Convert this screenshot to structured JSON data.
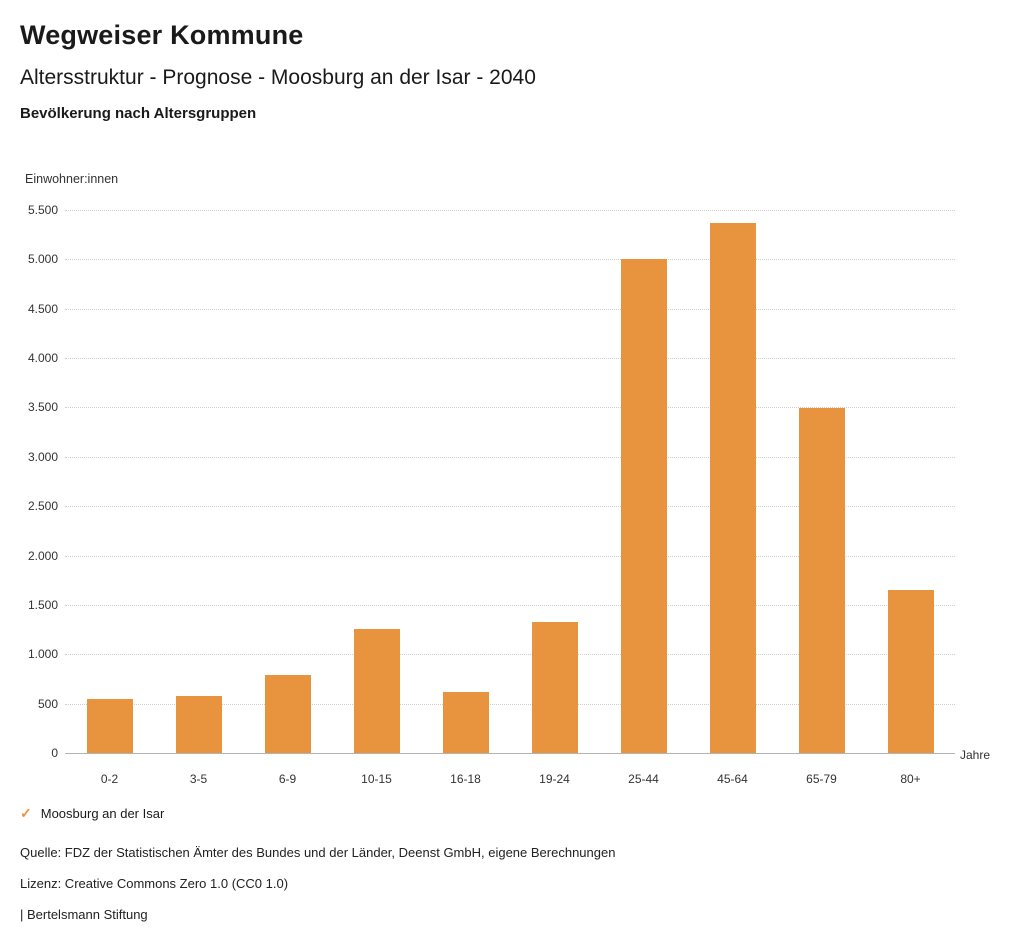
{
  "page": {
    "title": "Wegweiser Kommune",
    "subtitle": "Altersstruktur - Prognose - Moosburg an der Isar - 2040",
    "chart_heading": "Bevölkerung nach Altersgruppen"
  },
  "chart_data": {
    "type": "bar",
    "title": "Bevölkerung nach Altersgruppen",
    "unit_label": "Einwohner:innen",
    "xlabel": "Jahre",
    "categories": [
      "0-2",
      "3-5",
      "6-9",
      "10-15",
      "16-18",
      "19-24",
      "25-44",
      "45-64",
      "65-79",
      "80+"
    ],
    "series": [
      {
        "name": "Moosburg an der Isar",
        "values": [
          550,
          580,
          790,
          1260,
          620,
          1330,
          5000,
          5370,
          3490,
          1650
        ]
      }
    ],
    "ylim": [
      0,
      5500
    ],
    "ytick_step": 500,
    "ytick_labels": [
      "0",
      "500",
      "1.000",
      "1.500",
      "2.000",
      "2.500",
      "3.000",
      "3.500",
      "4.000",
      "4.500",
      "5.000",
      "5.500"
    ],
    "grid": "horizontal dotted",
    "legend_position": "bottom-left",
    "bar_color": "#E8933D"
  },
  "legend": {
    "items": [
      {
        "label": "Moosburg an der Isar",
        "color": "#E8933D",
        "icon": "check"
      }
    ],
    "check_glyph": "✓"
  },
  "footer": {
    "source": "Quelle: FDZ der Statistischen Ämter des Bundes und der Länder, Deenst GmbH, eigene Berechnungen",
    "license": "Lizenz: Creative Commons Zero 1.0 (CC0 1.0)",
    "attribution": "| Bertelsmann Stiftung"
  }
}
